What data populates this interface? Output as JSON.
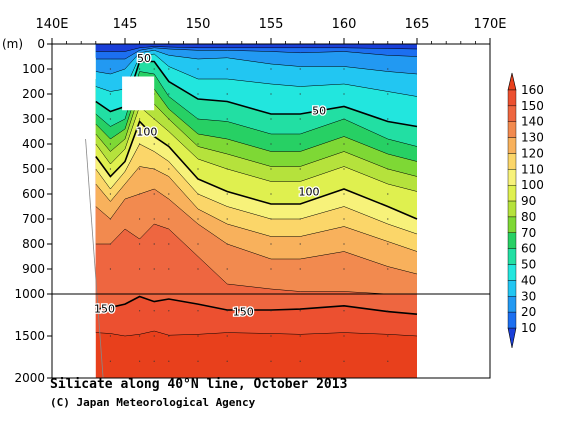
{
  "chart_data": {
    "type": "contour",
    "title": "Silicate along 40°N line, October 2013",
    "credit": "(C) Japan Meteorological Agency",
    "x_axis": {
      "unit_label": "E",
      "range": [
        140,
        170
      ],
      "ticks": [
        {
          "value": 140,
          "label": "140E"
        },
        {
          "value": 145,
          "label": "145"
        },
        {
          "value": 150,
          "label": "150"
        },
        {
          "value": 155,
          "label": "155"
        },
        {
          "value": 160,
          "label": "160"
        },
        {
          "value": 165,
          "label": "165"
        },
        {
          "value": 170,
          "label": "170E"
        }
      ]
    },
    "y_axis": {
      "label": "(m)",
      "range": [
        0,
        2000
      ],
      "break_at": 1000,
      "ticks": [
        {
          "value": 0,
          "label": "0"
        },
        {
          "value": 100,
          "label": "100"
        },
        {
          "value": 200,
          "label": "200"
        },
        {
          "value": 300,
          "label": "300"
        },
        {
          "value": 400,
          "label": "400"
        },
        {
          "value": 500,
          "label": "500"
        },
        {
          "value": 600,
          "label": "600"
        },
        {
          "value": 700,
          "label": "700"
        },
        {
          "value": 800,
          "label": "800"
        },
        {
          "value": 900,
          "label": "900"
        },
        {
          "value": 1000,
          "label": "1000"
        },
        {
          "value": 1500,
          "label": "1500"
        },
        {
          "value": 2000,
          "label": "2000"
        }
      ]
    },
    "colorbar": {
      "levels": [
        10,
        20,
        30,
        40,
        50,
        60,
        70,
        80,
        90,
        100,
        110,
        120,
        130,
        140,
        150,
        160
      ],
      "colors": [
        "#1a3fd8",
        "#1c6ff0",
        "#2299f2",
        "#22c6f2",
        "#22e6de",
        "#22dfa3",
        "#27d064",
        "#7ed835",
        "#b5e23c",
        "#dff04f",
        "#f7f27a",
        "#fbd669",
        "#f8b15c",
        "#f28a4f",
        "#ee6640",
        "#ec5030",
        "#e8401c"
      ]
    },
    "x_data": [
      143,
      144,
      145,
      146,
      147,
      148,
      150,
      152,
      155,
      157,
      160,
      163,
      165
    ],
    "iso_depths": [
      {
        "level": 10,
        "depths": [
          30,
          30,
          30,
          15,
          10,
          12,
          15,
          15,
          15,
          15,
          15,
          18,
          20
        ]
      },
      {
        "level": 20,
        "depths": [
          60,
          60,
          60,
          25,
          15,
          20,
          25,
          25,
          30,
          35,
          30,
          45,
          50
        ]
      },
      {
        "level": 30,
        "depths": [
          110,
          120,
          100,
          35,
          25,
          45,
          60,
          55,
          80,
          90,
          90,
          110,
          120
        ]
      },
      {
        "level": 40,
        "depths": [
          170,
          190,
          180,
          50,
          40,
          90,
          140,
          140,
          160,
          170,
          160,
          190,
          210
        ]
      },
      {
        "level": 50,
        "depths": [
          230,
          270,
          250,
          70,
          70,
          150,
          220,
          230,
          280,
          280,
          250,
          310,
          330
        ]
      },
      {
        "level": 60,
        "depths": [
          280,
          330,
          300,
          110,
          120,
          210,
          300,
          310,
          360,
          360,
          300,
          380,
          410
        ]
      },
      {
        "level": 70,
        "depths": [
          320,
          380,
          340,
          160,
          180,
          260,
          360,
          380,
          430,
          430,
          370,
          440,
          470
        ]
      },
      {
        "level": 80,
        "depths": [
          360,
          430,
          380,
          200,
          240,
          300,
          410,
          440,
          490,
          490,
          430,
          500,
          530
        ]
      },
      {
        "level": 90,
        "depths": [
          400,
          480,
          420,
          250,
          300,
          350,
          460,
          500,
          550,
          550,
          490,
          560,
          590
        ]
      },
      {
        "level": 100,
        "depths": [
          450,
          530,
          470,
          310,
          370,
          410,
          540,
          590,
          640,
          640,
          580,
          650,
          700
        ]
      },
      {
        "level": 110,
        "depths": [
          500,
          580,
          510,
          400,
          430,
          470,
          600,
          650,
          700,
          700,
          650,
          720,
          760
        ]
      },
      {
        "level": 120,
        "depths": [
          560,
          630,
          560,
          490,
          500,
          530,
          660,
          720,
          770,
          770,
          730,
          790,
          830
        ]
      },
      {
        "level": 130,
        "depths": [
          650,
          700,
          620,
          600,
          580,
          620,
          720,
          800,
          860,
          860,
          830,
          890,
          920
        ]
      },
      {
        "level": 140,
        "depths": [
          800,
          800,
          740,
          780,
          720,
          740,
          850,
          960,
          980,
          990,
          990,
          1000,
          1000
        ]
      },
      {
        "level": 150,
        "depths": [
          1180,
          1160,
          1120,
          1030,
          1090,
          1060,
          1120,
          1190,
          1190,
          1180,
          1140,
          1210,
          1240
        ]
      },
      {
        "level": 160,
        "depths": [
          1460,
          1470,
          1500,
          1480,
          1440,
          1490,
          1480,
          1460,
          1470,
          1480,
          1460,
          1480,
          1500
        ]
      }
    ],
    "contour_labels": [
      {
        "text": "50",
        "x": 146.3,
        "depth": 55
      },
      {
        "text": "50",
        "x": 158.3,
        "depth": 265
      },
      {
        "text": "100",
        "x": 146.5,
        "depth": 350
      },
      {
        "text": "100",
        "x": 157.6,
        "depth": 590
      },
      {
        "text": "150",
        "x": 143.6,
        "depth": 1170
      },
      {
        "text": "150",
        "x": 153.1,
        "depth": 1210
      }
    ],
    "missing_data_boxes": [
      {
        "x0": 142.2,
        "x1": 143.0,
        "d0": 55,
        "d1": 140
      },
      {
        "x0": 144.8,
        "x1": 147.0,
        "d0": 130,
        "d1": 265
      }
    ]
  }
}
